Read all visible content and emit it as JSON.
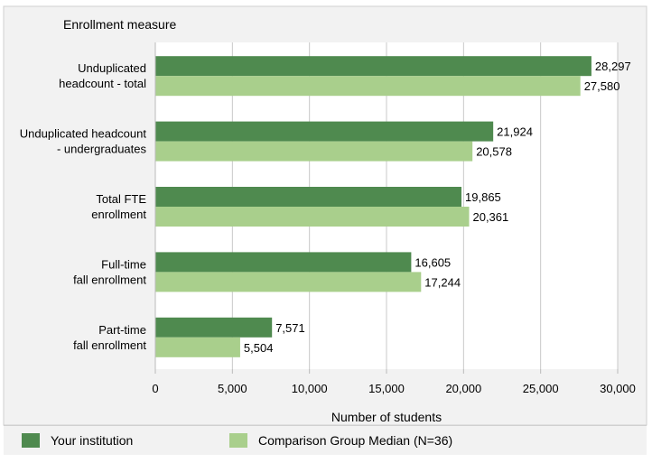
{
  "chart_data": {
    "type": "bar",
    "orientation": "horizontal",
    "category_axis_title": "Enrollment measure",
    "categories": [
      [
        "Unduplicated",
        "headcount - total"
      ],
      [
        "Unduplicated headcount",
        "- undergraduates"
      ],
      [
        "Total FTE",
        "enrollment"
      ],
      [
        "Full-time",
        "fall enrollment"
      ],
      [
        "Part-time",
        "fall enrollment"
      ]
    ],
    "series": [
      {
        "name": "Your institution",
        "color": "#4f8a4f",
        "values": [
          28297,
          21924,
          19865,
          16605,
          7571
        ],
        "labels": [
          "28,297",
          "21,924",
          "19,865",
          "16,605",
          "7,571"
        ]
      },
      {
        "name": "Comparison Group Median (N=36)",
        "color": "#a9cf8c",
        "values": [
          27580,
          20578,
          20361,
          17244,
          5504
        ],
        "labels": [
          "27,580",
          "20,578",
          "20,361",
          "17,244",
          "5,504"
        ]
      }
    ],
    "xlabel": "Number of students",
    "xlim": [
      0,
      30000
    ],
    "xticks": [
      0,
      5000,
      10000,
      15000,
      20000,
      25000,
      30000
    ],
    "xtick_labels": [
      "0",
      "5,000",
      "10,000",
      "15,000",
      "20,000",
      "25,000",
      "30,000"
    ],
    "grid": true,
    "legend_position": "bottom"
  }
}
